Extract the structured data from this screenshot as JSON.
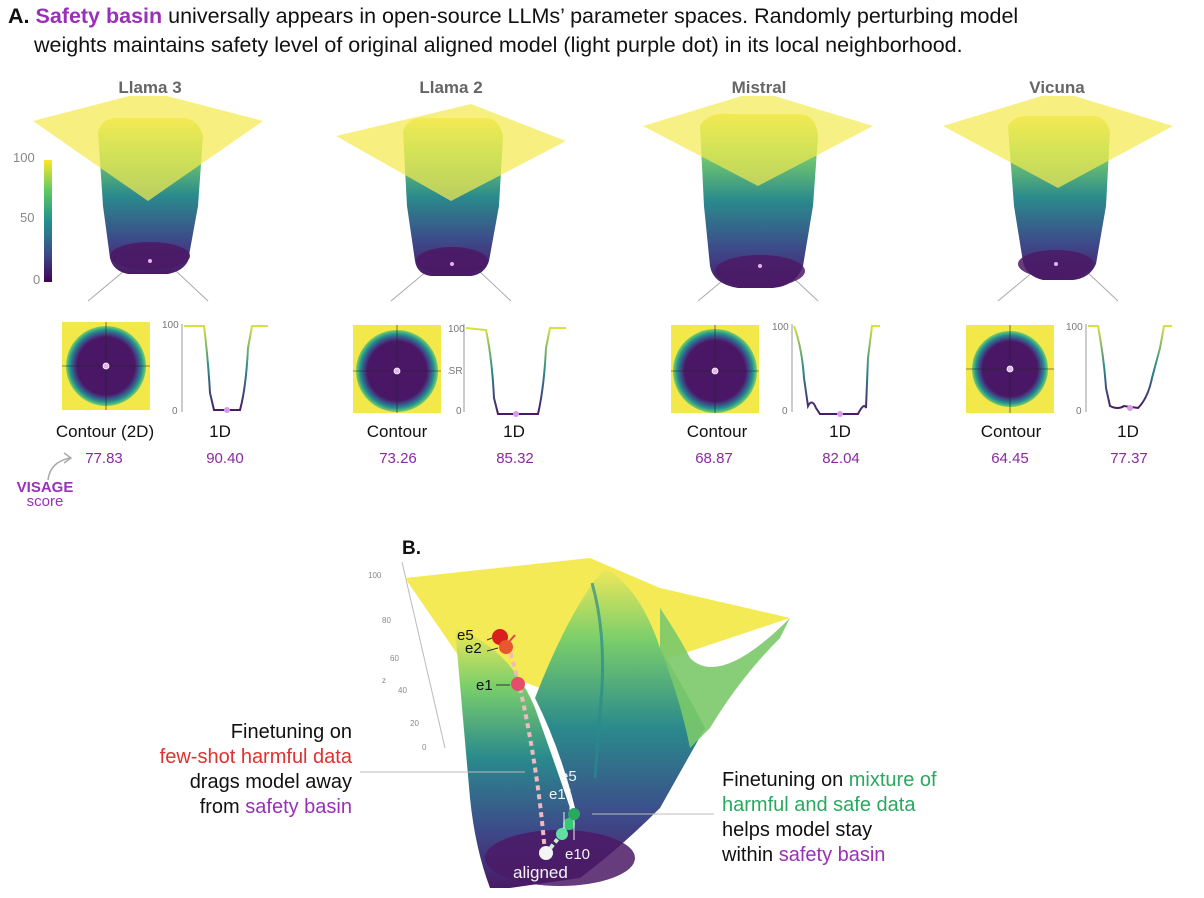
{
  "caption": {
    "label": "A.",
    "highlight": "Safety basin",
    "line1_rest": " universally appears in open-source LLMs’ parameter spaces. Randomly perturbing model",
    "line2": "weights maintains safety level of original aligned model (light purple dot) in its local neighborhood."
  },
  "colorbar": {
    "ticks": [
      "100",
      "50",
      "0"
    ]
  },
  "models": [
    {
      "name": "Llama 3",
      "contour_label": "Contour (2D)",
      "oned_label": "1D",
      "contour_score": "77.83",
      "oned_score": "90.40"
    },
    {
      "name": "Llama 2",
      "contour_label": "Contour",
      "oned_label": "1D",
      "contour_score": "73.26",
      "oned_score": "85.32"
    },
    {
      "name": "Mistral",
      "contour_label": "Contour",
      "oned_label": "1D",
      "contour_score": "68.87",
      "oned_score": "82.04"
    },
    {
      "name": "Vicuna",
      "contour_label": "Contour",
      "oned_label": "1D",
      "contour_score": "64.45",
      "oned_score": "77.37"
    }
  ],
  "oned_axis": {
    "top": "100",
    "bottom": "0",
    "ylabel": "ASR"
  },
  "visage": {
    "title": "VISAGE",
    "sub": "score"
  },
  "panel_b": {
    "label": "B.",
    "z_ticks": [
      "100",
      "80",
      "60",
      "40",
      "20",
      "0"
    ],
    "z_label": "z",
    "left_annotation": {
      "line1": "Finetuning on",
      "line2": "few-shot harmful data",
      "line3": "drags model away",
      "line4_pre": "from ",
      "line4_hl": "safety basin"
    },
    "right_annotation": {
      "line1_pre": "Finetuning on ",
      "line1_hl": "mixture of",
      "line2_hl": "harmful and safe data",
      "line3": "helps model stay",
      "line4_pre": "within ",
      "line4_hl": "safety basin"
    },
    "markers": {
      "e5_red": "e5",
      "e2": "e2",
      "e1_red": "e1",
      "e5_green": "e5",
      "e1_green": "e1",
      "e10": "e10",
      "aligned": "aligned"
    }
  },
  "colors": {
    "accent": "#9a2fb8",
    "red": "#e03030",
    "green": "#2aa860",
    "basin": "#4a1d5e",
    "plateau": "#f4ea50"
  }
}
